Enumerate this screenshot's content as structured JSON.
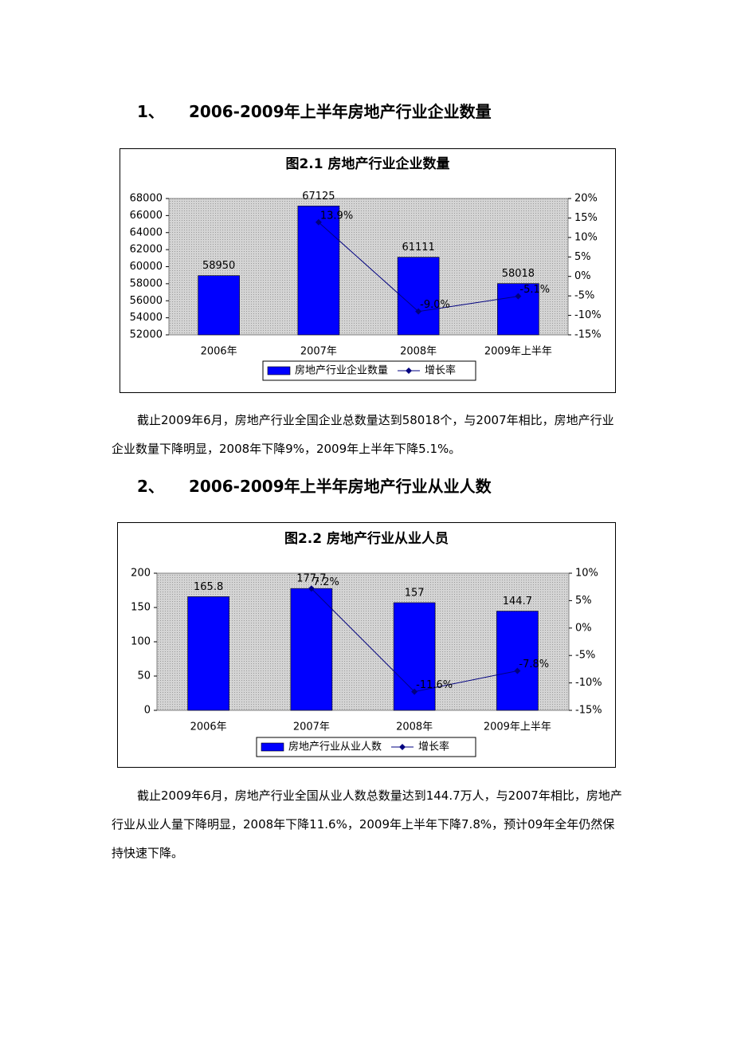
{
  "headings": [
    {
      "number": "1、",
      "title": "2006-2009年上半年房地产行业企业数量"
    },
    {
      "number": "2、",
      "title": "2006-2009年上半年房地产行业从业人数"
    }
  ],
  "paragraphs": [
    "截止2009年6月，房地产行业全国企业总数量达到58018个，与2007年相比，房地产行业企业数量下降明显，2008年下降9%，2009年上半年下降5.1%。",
    "截止2009年6月，房地产行业全国从业人数总数量达到144.7万人，与2007年相比，房地产行业从业人量下降明显，2008年下降11.6%，2009年上半年下降7.8%，预计09年全年仍然保持快速下降。"
  ],
  "chart_data": [
    {
      "type": "bar",
      "title": "图2.1 房地产行业企业数量",
      "categories": [
        "2006年",
        "2007年",
        "2008年",
        "2009年上半年"
      ],
      "series": [
        {
          "name": "房地产行业企业数量",
          "type": "bar",
          "color": "#0000ff",
          "values": [
            58950,
            67125,
            61111,
            58018
          ]
        },
        {
          "name": "增长率",
          "type": "line",
          "axis": "y2",
          "color": "#000080",
          "values": [
            null,
            13.9,
            -9.0,
            -5.1
          ],
          "value_labels": [
            null,
            "13.9%",
            "-9.0%",
            "-5.1%"
          ]
        }
      ],
      "ylim": [
        52000,
        68000
      ],
      "yticks": [
        52000,
        54000,
        56000,
        58000,
        60000,
        62000,
        64000,
        66000,
        68000
      ],
      "y2lim": [
        -15,
        20
      ],
      "y2ticks": [
        {
          "value": -15,
          "label": "-15%"
        },
        {
          "value": -10,
          "label": "-10%"
        },
        {
          "value": -5,
          "label": "-5%"
        },
        {
          "value": 0,
          "label": "0%"
        },
        {
          "value": 5,
          "label": "5%"
        },
        {
          "value": 10,
          "label": "10%"
        },
        {
          "value": 15,
          "label": "15%"
        },
        {
          "value": 20,
          "label": "20%"
        }
      ],
      "legend": "bottom"
    },
    {
      "type": "bar",
      "title": "图2.2 房地产行业从业人员",
      "categories": [
        "2006年",
        "2007年",
        "2008年",
        "2009年上半年"
      ],
      "series": [
        {
          "name": "房地产行业从业人数",
          "type": "bar",
          "color": "#0000ff",
          "values": [
            165.8,
            177.7,
            157,
            144.7
          ]
        },
        {
          "name": "增长率",
          "type": "line",
          "axis": "y2",
          "color": "#000080",
          "values": [
            null,
            7.2,
            -11.6,
            -7.8
          ],
          "value_labels": [
            null,
            "7.2%",
            "-11.6%",
            "-7.8%"
          ]
        }
      ],
      "ylim": [
        0,
        200
      ],
      "yticks": [
        0,
        50,
        100,
        150,
        200
      ],
      "y2lim": [
        -15,
        10
      ],
      "y2ticks": [
        {
          "value": -15,
          "label": "-15%"
        },
        {
          "value": -10,
          "label": "-10%"
        },
        {
          "value": -5,
          "label": "-5%"
        },
        {
          "value": 0,
          "label": "0%"
        },
        {
          "value": 5,
          "label": "5%"
        },
        {
          "value": 10,
          "label": "10%"
        }
      ],
      "legend": "bottom"
    }
  ]
}
